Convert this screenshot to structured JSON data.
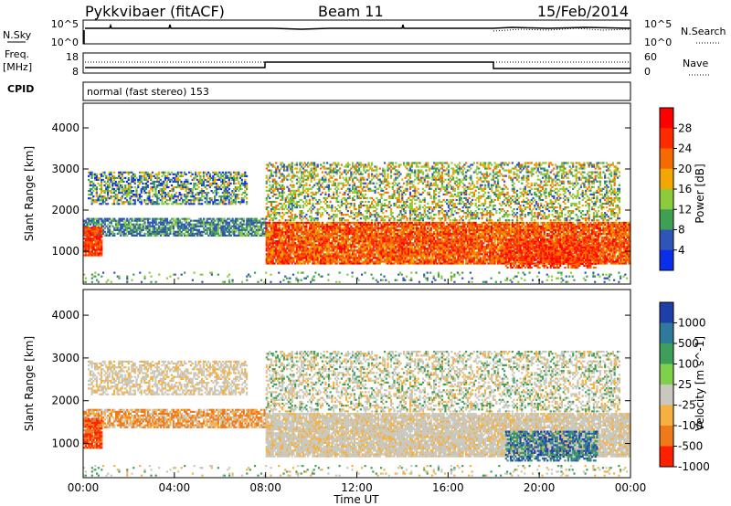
{
  "header": {
    "station": "Pykkvibaer (fitACF)",
    "beam": "Beam 11",
    "date": "15/Feb/2014"
  },
  "panels": {
    "nsky": {
      "left_label": "N.Sky",
      "top_tick": "10^5",
      "bottom_tick": "10^0",
      "right_label": "N.Search",
      "right_top_tick": "10^5",
      "right_bottom_tick": "10^0"
    },
    "freq": {
      "left_label_1": "Freq.",
      "left_label_2": "[MHz]",
      "top_tick": "18",
      "bottom_tick": "8",
      "right_label": "Nave",
      "right_top_tick": "60",
      "right_bottom_tick": "0"
    },
    "cpid": {
      "label": "CPID",
      "value": "normal (fast stereo) 153"
    }
  },
  "chart_data": [
    {
      "type": "heatmap",
      "name": "power",
      "ylabel": "Slant Range [km]",
      "xlabel": "",
      "yticks": [
        "1000",
        "2000",
        "3000",
        "4000"
      ],
      "ylim": [
        200,
        4600
      ],
      "xlim": [
        0,
        24
      ],
      "colorbar": {
        "label": "Power [dB]",
        "ticks": [
          "4",
          "8",
          "12",
          "16",
          "20",
          "24",
          "28"
        ],
        "colors": [
          "#0b2fe8",
          "#2f55b8",
          "#3e9f55",
          "#8ccb3b",
          "#f2a800",
          "#f46b00",
          "#ff2a00",
          "#ff0000"
        ]
      },
      "features": [
        {
          "feature": "near-range band",
          "time_start": 0,
          "time_end": 8,
          "range_low": 1400,
          "range_high": 1800
        },
        {
          "feature": "far-range arc",
          "time_start": 0,
          "time_end": 8,
          "range_low": 2200,
          "range_high": 2900
        },
        {
          "feature": "strong echo band",
          "time_start": 8,
          "time_end": 24,
          "range_low": 700,
          "range_high": 1700
        },
        {
          "feature": "upper scatter",
          "time_start": 8,
          "time_end": 23.5,
          "range_low": 1800,
          "range_high": 3150
        }
      ]
    },
    {
      "type": "heatmap",
      "name": "velocity",
      "ylabel": "Slant Range [km]",
      "xlabel": "Time UT",
      "yticks": [
        "1000",
        "2000",
        "3000",
        "4000"
      ],
      "ylim": [
        200,
        4600
      ],
      "xlim": [
        0,
        24
      ],
      "xticks": [
        "00:00",
        "04:00",
        "08:00",
        "12:00",
        "16:00",
        "20:00",
        "00:00"
      ],
      "colorbar": {
        "label": "Velocity [m s^-1]",
        "ticks": [
          "1000",
          "500",
          "100",
          "25",
          "-25",
          "-100",
          "-500",
          "-1000"
        ],
        "colors": [
          "#1f3fa8",
          "#2f7a9a",
          "#3f9f5a",
          "#7fd04a",
          "#c8c8be",
          "#f5b040",
          "#f07a1a",
          "#ff2000"
        ]
      },
      "features": [
        {
          "feature": "low-velocity (ground scatter)",
          "time_start": 0,
          "time_end": 24,
          "range_low": 1000,
          "range_high": 3150
        },
        {
          "feature": "negative velocity (orange)",
          "time_start": 0,
          "time_end": 6.5,
          "range_low": 900,
          "range_high": 1900
        },
        {
          "feature": "positive velocity (blue/green)",
          "time_start": 18.5,
          "time_end": 22.5,
          "range_low": 600,
          "range_high": 1400
        }
      ]
    }
  ]
}
